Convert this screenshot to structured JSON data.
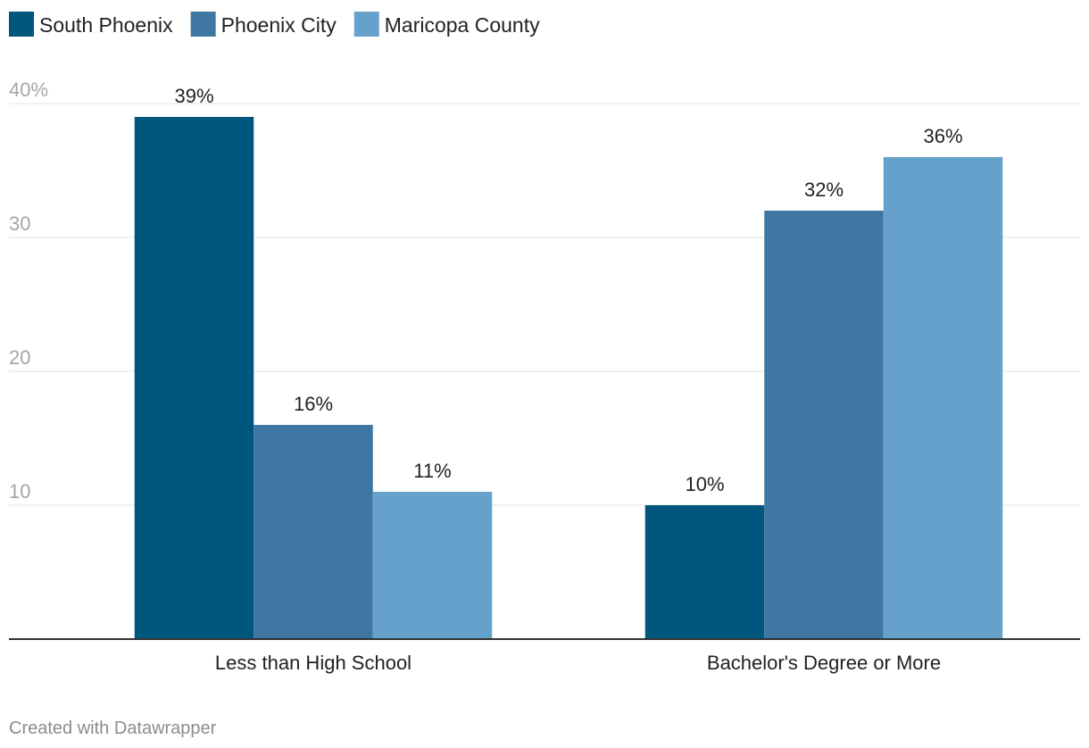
{
  "chart_data": {
    "type": "bar",
    "categories": [
      "Less than High School",
      "Bachelor's Degree or More"
    ],
    "series": [
      {
        "name": "South Phoenix",
        "color": "#00567d",
        "values": [
          39,
          10
        ],
        "labels": [
          "39%",
          "10%"
        ]
      },
      {
        "name": "Phoenix City",
        "color": "#3e78a2",
        "values": [
          16,
          32
        ],
        "labels": [
          "16%",
          "32%"
        ]
      },
      {
        "name": "Maricopa County",
        "color": "#66a1cc",
        "values": [
          11,
          36
        ],
        "labels": [
          "11%",
          "36%"
        ]
      }
    ],
    "ylim": [
      0,
      40
    ],
    "yticks": [
      10,
      20,
      30,
      40
    ],
    "ytick_labels": [
      "10",
      "20",
      "30",
      "40%"
    ],
    "grid": true,
    "legend_position": "top-left",
    "title": "",
    "xlabel": "",
    "ylabel": ""
  },
  "footer": {
    "credit": "Created with Datawrapper"
  },
  "colors": {
    "gridline": "#e1e1e1",
    "baseline": "#333333",
    "tick_text": "#a6a6a6"
  }
}
